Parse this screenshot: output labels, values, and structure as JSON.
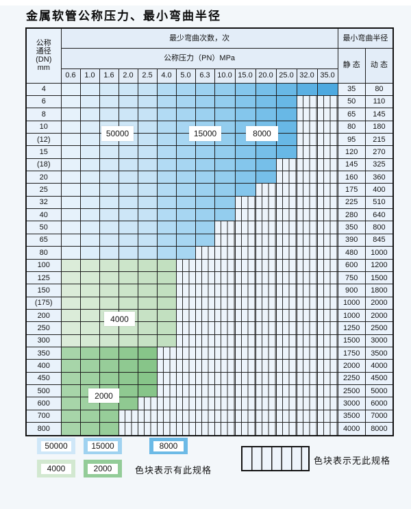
{
  "title": "金属软管公称压力、最小弯曲半径",
  "table": {
    "corner_lines": [
      "公称",
      "通径",
      "(DN)",
      "mm"
    ],
    "bend_header": "最少弯曲次数，次",
    "radius_header": "最小弯曲半径",
    "pressure_header": "公称压力（PN）MPa",
    "pressure_cols": [
      "0.6",
      "1.0",
      "1.6",
      "2.0",
      "2.5",
      "4.0",
      "5.0",
      "6.3",
      "10.0",
      "15.0",
      "20.0",
      "25.0",
      "32.0",
      "35.0"
    ],
    "static_header": "静 态",
    "dynamic_header": "动 态",
    "rows": [
      {
        "dn": "4",
        "group": "blue",
        "colored_through": 13,
        "static": "35",
        "dynamic": "80"
      },
      {
        "dn": "6",
        "group": "blue",
        "colored_through": 11,
        "static": "50",
        "dynamic": "110"
      },
      {
        "dn": "8",
        "group": "blue",
        "colored_through": 11,
        "static": "65",
        "dynamic": "145"
      },
      {
        "dn": "10",
        "group": "blue",
        "colored_through": 11,
        "static": "80",
        "dynamic": "180"
      },
      {
        "dn": "(12)",
        "group": "blue",
        "colored_through": 11,
        "static": "95",
        "dynamic": "215"
      },
      {
        "dn": "15",
        "group": "blue",
        "colored_through": 11,
        "static": "120",
        "dynamic": "270"
      },
      {
        "dn": "(18)",
        "group": "blue",
        "colored_through": 10,
        "static": "145",
        "dynamic": "325"
      },
      {
        "dn": "20",
        "group": "blue",
        "colored_through": 10,
        "static": "160",
        "dynamic": "360"
      },
      {
        "dn": "25",
        "group": "blue",
        "colored_through": 9,
        "static": "175",
        "dynamic": "400"
      },
      {
        "dn": "32",
        "group": "blue",
        "colored_through": 8,
        "static": "225",
        "dynamic": "510"
      },
      {
        "dn": "40",
        "group": "blue",
        "colored_through": 8,
        "static": "280",
        "dynamic": "640"
      },
      {
        "dn": "50",
        "group": "blue",
        "colored_through": 7,
        "static": "350",
        "dynamic": "800"
      },
      {
        "dn": "65",
        "group": "blue",
        "colored_through": 7,
        "static": "390",
        "dynamic": "845"
      },
      {
        "dn": "80",
        "group": "blue",
        "colored_through": 6,
        "static": "480",
        "dynamic": "1000"
      },
      {
        "dn": "100",
        "group": "g4000",
        "colored_through": 5,
        "static": "600",
        "dynamic": "1200"
      },
      {
        "dn": "125",
        "group": "g4000",
        "colored_through": 5,
        "static": "750",
        "dynamic": "1500"
      },
      {
        "dn": "150",
        "group": "g4000",
        "colored_through": 5,
        "static": "900",
        "dynamic": "1800"
      },
      {
        "dn": "(175)",
        "group": "g4000",
        "colored_through": 5,
        "static": "1000",
        "dynamic": "2000"
      },
      {
        "dn": "200",
        "group": "g4000",
        "colored_through": 5,
        "static": "1000",
        "dynamic": "2000"
      },
      {
        "dn": "250",
        "group": "g4000",
        "colored_through": 5,
        "static": "1250",
        "dynamic": "2500"
      },
      {
        "dn": "300",
        "group": "g4000",
        "colored_through": 5,
        "static": "1500",
        "dynamic": "3000"
      },
      {
        "dn": "350",
        "group": "g2000",
        "colored_through": 4,
        "static": "1750",
        "dynamic": "3500"
      },
      {
        "dn": "400",
        "group": "g2000",
        "colored_through": 4,
        "static": "2000",
        "dynamic": "4000"
      },
      {
        "dn": "450",
        "group": "g2000",
        "colored_through": 4,
        "static": "2250",
        "dynamic": "4500"
      },
      {
        "dn": "500",
        "group": "g2000",
        "colored_through": 4,
        "static": "2500",
        "dynamic": "5000"
      },
      {
        "dn": "600",
        "group": "g2000",
        "colored_through": 3,
        "static": "3000",
        "dynamic": "6000"
      },
      {
        "dn": "700",
        "group": "g2000",
        "colored_through": 2,
        "static": "3500",
        "dynamic": "7000"
      },
      {
        "dn": "800",
        "group": "g2000",
        "colored_through": 2,
        "static": "4000",
        "dynamic": "8000"
      }
    ]
  },
  "cycle_overlays": [
    "50000",
    "15000",
    "8000",
    "4000",
    "2000"
  ],
  "legend": {
    "row1": [
      {
        "label": "50000",
        "color": "#cfe7f8"
      },
      {
        "label": "15000",
        "color": "#9fd2f0"
      },
      {
        "label": "8000",
        "color": "#6cbae6"
      }
    ],
    "row2": [
      {
        "label": "4000",
        "color": "#d2e8d0"
      },
      {
        "label": "2000",
        "color": "#93cc98"
      }
    ],
    "has_spec_note": "色块表示有此规格",
    "no_spec_note": "色块表示无此规格"
  },
  "colors": {
    "blue_cols": [
      "#e6f2fb",
      "#ddeefa",
      "#d5eaf8",
      "#cde6f7",
      "#c6e3f6",
      "#b2dbf4",
      "#a7d6f2",
      "#9cd1f0",
      "#93cdee",
      "#84c6ec",
      "#76bfe9",
      "#68b8e6",
      "#5ab0e3",
      "#4da9e0"
    ],
    "g4000_cols": [
      "#dbecd9",
      "#d6ead4",
      "#d1e7cf",
      "#cce5ca",
      "#c7e2c5",
      "#c2e0c0"
    ],
    "g2000_cols": [
      "#a7d5a9",
      "#9fd1a1",
      "#97cd99",
      "#8fc991",
      "#87c589"
    ],
    "grid_line": "#1c1c1c",
    "header_bg": "#e3edf8"
  }
}
